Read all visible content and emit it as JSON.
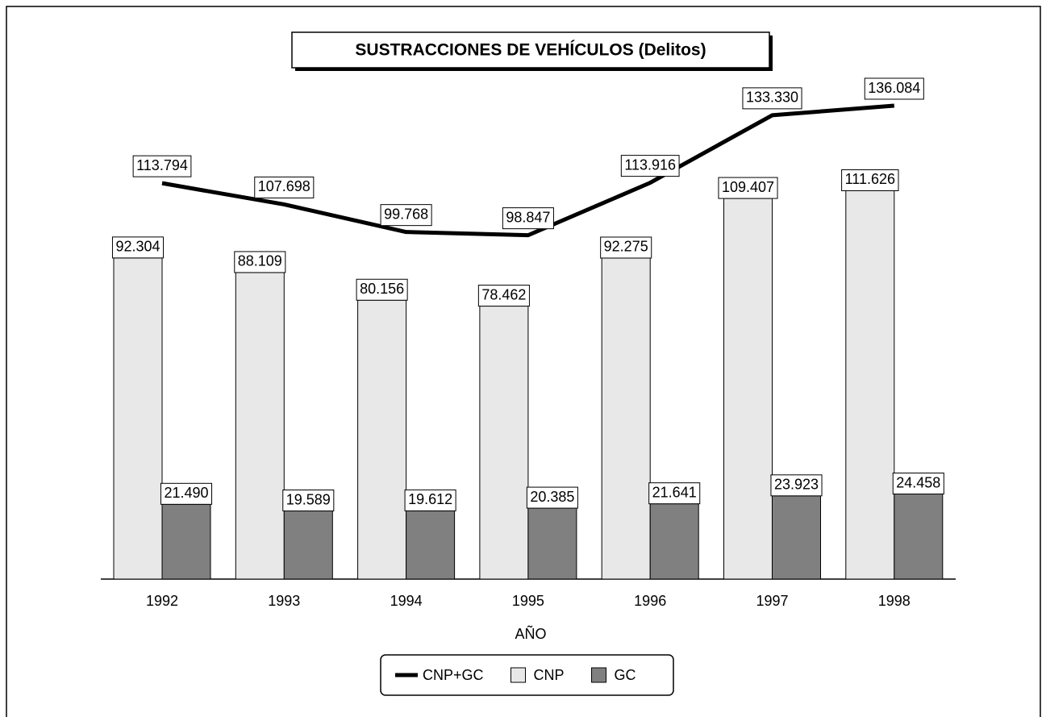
{
  "chart_data": {
    "type": "bar",
    "title": "SUSTRACCIONES DE VEHÍCULOS (Delitos)",
    "x_label": "AÑO",
    "categories": [
      "1992",
      "1993",
      "1994",
      "1995",
      "1996",
      "1997",
      "1998"
    ],
    "series": [
      {
        "name": "CNP+GC",
        "type": "line",
        "color": "#000000",
        "values": [
          113794,
          107698,
          99768,
          98847,
          113916,
          133330,
          136084
        ],
        "value_labels": [
          "113.794",
          "107.698",
          "99.768",
          "98.847",
          "113.916",
          "133.330",
          "136.084"
        ]
      },
      {
        "name": "CNP",
        "type": "bar",
        "color": "#e8e8e8",
        "values": [
          92304,
          88109,
          80156,
          78462,
          92275,
          109407,
          111626
        ],
        "value_labels": [
          "92.304",
          "88.109",
          "80.156",
          "78.462",
          "92.275",
          "109.407",
          "111.626"
        ]
      },
      {
        "name": "GC",
        "type": "bar",
        "color": "#808080",
        "values": [
          21490,
          19589,
          19612,
          20385,
          21641,
          23923,
          24458
        ],
        "value_labels": [
          "21.490",
          "19.589",
          "19.612",
          "20.385",
          "21.641",
          "23.923",
          "24.458"
        ]
      }
    ]
  }
}
